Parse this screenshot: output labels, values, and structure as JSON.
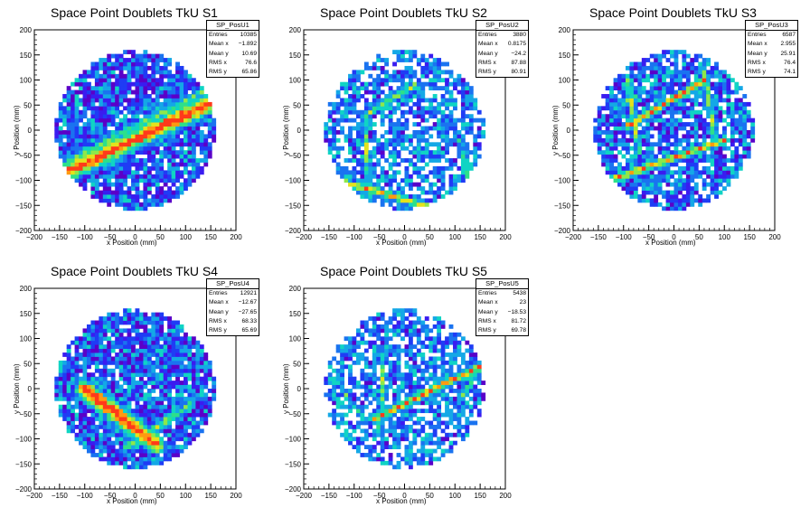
{
  "chart_data": [
    {
      "type": "heatmap",
      "title": "Space Point Doublets TkU S1",
      "xlabel": "x Position (mm)",
      "ylabel": "y Position (mm)",
      "xlim": [
        -200,
        200
      ],
      "ylim": [
        -200,
        200
      ],
      "xticks": [
        "−200",
        "−150",
        "−100",
        "−50",
        "0",
        "50",
        "100",
        "150",
        "200"
      ],
      "yticks": [
        "200",
        "150",
        "100",
        "50",
        "0",
        "−50",
        "−100",
        "−150",
        "−200"
      ],
      "stats": {
        "name": "SP_PosU1",
        "rows": [
          [
            "Entries",
            "10385"
          ],
          [
            "Mean x",
            "−1.892"
          ],
          [
            "Mean y",
            "10.69"
          ],
          [
            "RMS x",
            "76.6"
          ],
          [
            "RMS y",
            "65.86"
          ]
        ]
      },
      "features": {
        "density": "high",
        "tracks": [
          [
            -150,
            -90,
            160,
            60,
            28,
            0.95
          ],
          [
            -130,
            -60,
            140,
            80,
            14,
            0.5
          ]
        ]
      }
    },
    {
      "type": "heatmap",
      "title": "Space Point Doublets TkU S2",
      "xlabel": "x Position (mm)",
      "ylabel": "y Position (mm)",
      "xlim": [
        -200,
        200
      ],
      "ylim": [
        -200,
        200
      ],
      "xticks": [
        "−200",
        "−150",
        "−100",
        "−50",
        "0",
        "50",
        "100",
        "150",
        "200"
      ],
      "yticks": [
        "200",
        "150",
        "100",
        "50",
        "0",
        "−50",
        "−100",
        "−150",
        "−200"
      ],
      "stats": {
        "name": "SP_PosU2",
        "rows": [
          [
            "Entries",
            "3880"
          ],
          [
            "Mean x",
            "0.8175"
          ],
          [
            "Mean y",
            "−24.2"
          ],
          [
            "RMS x",
            "87.88"
          ],
          [
            "RMS y",
            "80.91"
          ]
        ]
      },
      "features": {
        "density": "low",
        "tracks": [
          [
            -130,
            -100,
            40,
            -150,
            12,
            0.75
          ],
          [
            -80,
            30,
            -70,
            -130,
            8,
            0.55
          ],
          [
            -80,
            30,
            20,
            90,
            10,
            0.6
          ],
          [
            110,
            -20,
            130,
            -130,
            10,
            0.5
          ]
        ]
      }
    },
    {
      "type": "heatmap",
      "title": "Space Point Doublets TkU S3",
      "xlabel": "x Position (mm)",
      "ylabel": "y Position (mm)",
      "xlim": [
        -200,
        200
      ],
      "ylim": [
        -200,
        200
      ],
      "xticks": [
        "−200",
        "−150",
        "−100",
        "−50",
        "0",
        "50",
        "100",
        "150",
        "200"
      ],
      "yticks": [
        "200",
        "150",
        "100",
        "50",
        "0",
        "−50",
        "−100",
        "−150",
        "−200"
      ],
      "stats": {
        "name": "SP_PosU3",
        "rows": [
          [
            "Entries",
            "6587"
          ],
          [
            "Mean x",
            "2.955"
          ],
          [
            "Mean y",
            "25.91"
          ],
          [
            "RMS x",
            "76.4"
          ],
          [
            "RMS y",
            "74.1"
          ]
        ]
      },
      "features": {
        "density": "medium",
        "tracks": [
          [
            -90,
            10,
            60,
            100,
            12,
            0.8
          ],
          [
            -130,
            -100,
            100,
            -20,
            12,
            0.8
          ],
          [
            -90,
            100,
            -70,
            -40,
            10,
            0.6
          ],
          [
            60,
            120,
            80,
            -10,
            10,
            0.6
          ],
          [
            -120,
            40,
            -60,
            80,
            10,
            0.5
          ]
        ]
      }
    },
    {
      "type": "heatmap",
      "title": "Space Point Doublets TkU S4",
      "xlabel": "x Position (mm)",
      "ylabel": "y Position (mm)",
      "xlim": [
        -200,
        200
      ],
      "ylim": [
        -200,
        200
      ],
      "xticks": [
        "−200",
        "−150",
        "−100",
        "−50",
        "0",
        "50",
        "100",
        "150",
        "200"
      ],
      "yticks": [
        "200",
        "150",
        "100",
        "50",
        "0",
        "−50",
        "−100",
        "−150",
        "−200"
      ],
      "stats": {
        "name": "SP_PosU4",
        "rows": [
          [
            "Entries",
            "12921"
          ],
          [
            "Mean x",
            "−12.67"
          ],
          [
            "Mean y",
            "−27.65"
          ],
          [
            "RMS x",
            "68.33"
          ],
          [
            "RMS y",
            "65.69"
          ]
        ]
      },
      "features": {
        "density": "high",
        "tracks": [
          [
            -100,
            0,
            40,
            -110,
            26,
            0.95
          ],
          [
            -20,
            -120,
            110,
            -30,
            14,
            0.55
          ]
        ]
      }
    },
    {
      "type": "heatmap",
      "title": "Space Point Doublets TkU S5",
      "xlabel": "x Position (mm)",
      "ylabel": "y Position (mm)",
      "xlim": [
        -200,
        200
      ],
      "ylim": [
        -200,
        200
      ],
      "xticks": [
        "−200",
        "−150",
        "−100",
        "−50",
        "0",
        "50",
        "100",
        "150",
        "200"
      ],
      "yticks": [
        "200",
        "150",
        "100",
        "50",
        "0",
        "−50",
        "−100",
        "−150",
        "−200"
      ],
      "stats": {
        "name": "SP_PosU5",
        "rows": [
          [
            "Entries",
            "5438"
          ],
          [
            "Mean x",
            "23"
          ],
          [
            "Mean y",
            "−18.53"
          ],
          [
            "RMS x",
            "81.72"
          ],
          [
            "RMS y",
            "69.78"
          ]
        ]
      },
      "features": {
        "density": "low",
        "tracks": [
          [
            -60,
            -60,
            160,
            50,
            12,
            0.85
          ],
          [
            -50,
            -90,
            -40,
            80,
            8,
            0.55
          ],
          [
            110,
            -20,
            150,
            40,
            10,
            0.55
          ],
          [
            -140,
            20,
            -80,
            -60,
            8,
            0.4
          ]
        ]
      }
    }
  ]
}
